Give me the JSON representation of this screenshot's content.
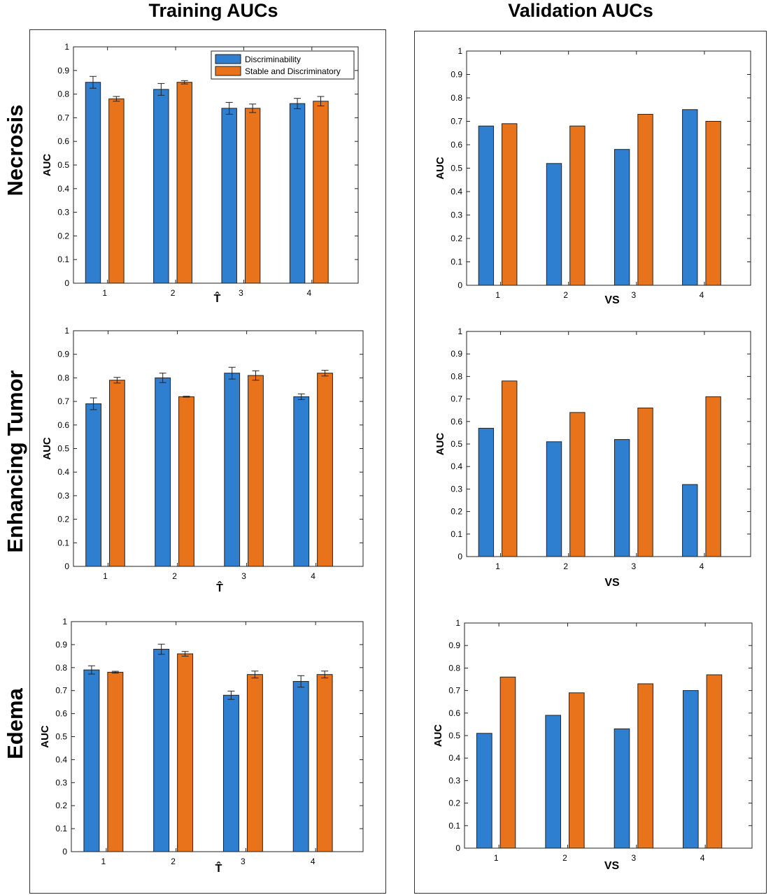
{
  "titles": {
    "training": "Training AUCs",
    "validation": "Validation AUCs"
  },
  "rows": [
    "Necrosis",
    "Enhancing Tumor",
    "Edema"
  ],
  "colors": {
    "discriminability": "#2f7fd0",
    "stable": "#e8731a"
  },
  "chart_data": [
    {
      "id": "train-necrosis",
      "type": "bar",
      "title": "",
      "xlabel": "T̂",
      "ylabel": "AUC",
      "ylim": [
        0,
        1
      ],
      "grid": false,
      "legend": "top-right",
      "categories": [
        "1",
        "2",
        "3",
        "4"
      ],
      "series": [
        {
          "name": "Discriminability",
          "values": [
            0.85,
            0.82,
            0.74,
            0.76
          ],
          "errors": [
            0.025,
            0.025,
            0.025,
            0.022
          ]
        },
        {
          "name": "Stable and Discriminatory",
          "values": [
            0.78,
            0.85,
            0.74,
            0.77
          ],
          "errors": [
            0.01,
            0.007,
            0.018,
            0.02
          ]
        }
      ]
    },
    {
      "id": "val-necrosis",
      "type": "bar",
      "title": "",
      "xlabel": "VS",
      "ylabel": "AUC",
      "ylim": [
        0,
        1
      ],
      "grid": false,
      "categories": [
        "1",
        "2",
        "3",
        "4"
      ],
      "series": [
        {
          "values": [
            0.68,
            0.52,
            0.58,
            0.75
          ]
        },
        {
          "values": [
            0.69,
            0.68,
            0.73,
            0.7
          ]
        }
      ]
    },
    {
      "id": "train-enhancing",
      "type": "bar",
      "title": "",
      "xlabel": "T̂",
      "ylabel": "AUC",
      "ylim": [
        0,
        1
      ],
      "grid": false,
      "categories": [
        "1",
        "2",
        "3",
        "4"
      ],
      "series": [
        {
          "values": [
            0.69,
            0.8,
            0.82,
            0.72
          ],
          "errors": [
            0.025,
            0.02,
            0.025,
            0.012
          ]
        },
        {
          "values": [
            0.79,
            0.72,
            0.81,
            0.82
          ],
          "errors": [
            0.012,
            0.002,
            0.02,
            0.012
          ]
        }
      ]
    },
    {
      "id": "val-enhancing",
      "type": "bar",
      "title": "",
      "xlabel": "VS",
      "ylabel": "AUC",
      "ylim": [
        0,
        1
      ],
      "grid": false,
      "categories": [
        "1",
        "2",
        "3",
        "4"
      ],
      "series": [
        {
          "values": [
            0.57,
            0.51,
            0.52,
            0.32
          ]
        },
        {
          "values": [
            0.78,
            0.64,
            0.66,
            0.71
          ]
        }
      ]
    },
    {
      "id": "train-edema",
      "type": "bar",
      "title": "",
      "xlabel": "T̂",
      "ylabel": "AUC",
      "ylim": [
        0,
        1
      ],
      "grid": false,
      "categories": [
        "1",
        "2",
        "3",
        "4"
      ],
      "series": [
        {
          "values": [
            0.79,
            0.88,
            0.68,
            0.74
          ],
          "errors": [
            0.018,
            0.022,
            0.018,
            0.025
          ]
        },
        {
          "values": [
            0.78,
            0.86,
            0.77,
            0.77
          ],
          "errors": [
            0.004,
            0.01,
            0.015,
            0.015
          ]
        }
      ]
    },
    {
      "id": "val-edema",
      "type": "bar",
      "title": "",
      "xlabel": "VS",
      "ylabel": "AUC",
      "ylim": [
        0,
        1
      ],
      "grid": false,
      "categories": [
        "1",
        "2",
        "3",
        "4"
      ],
      "series": [
        {
          "values": [
            0.51,
            0.59,
            0.53,
            0.7
          ]
        },
        {
          "values": [
            0.76,
            0.69,
            0.73,
            0.77
          ]
        }
      ]
    }
  ]
}
